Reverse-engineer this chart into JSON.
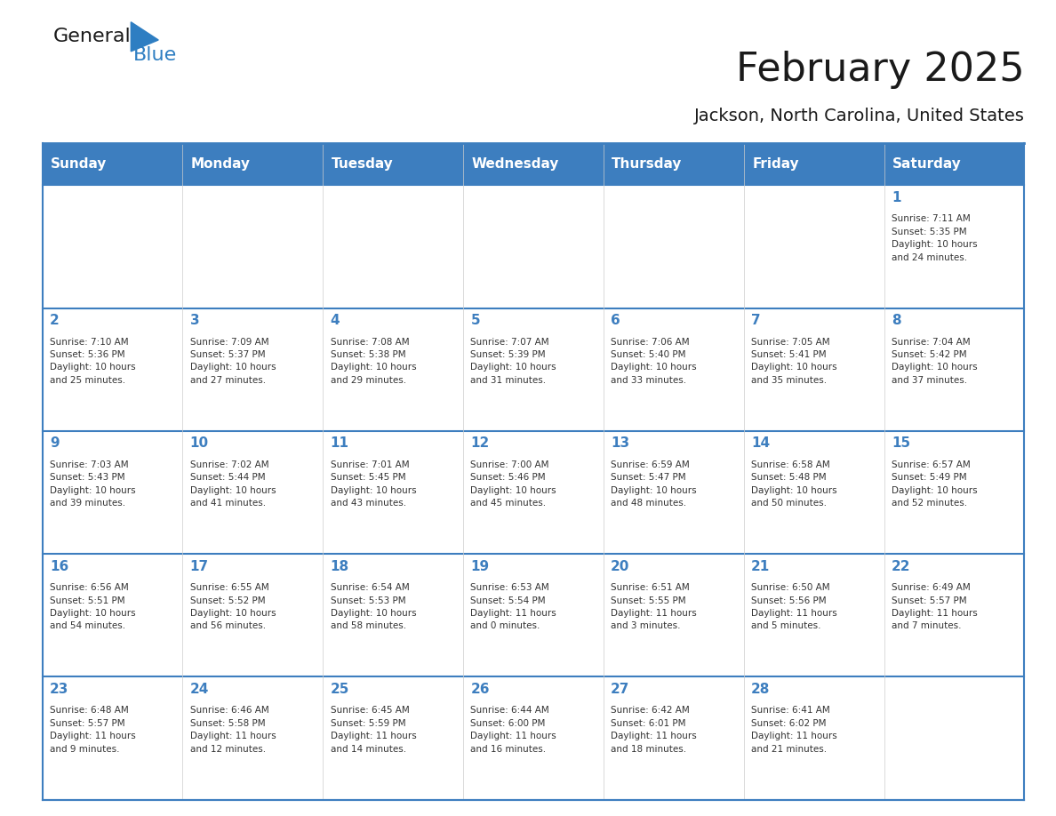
{
  "title": "February 2025",
  "subtitle": "Jackson, North Carolina, United States",
  "header_color": "#3D7EBF",
  "header_text_color": "#FFFFFF",
  "cell_bg_color": "#FFFFFF",
  "border_color": "#3D7EBF",
  "title_color": "#1A1A1A",
  "subtitle_color": "#1A1A1A",
  "days_of_week": [
    "Sunday",
    "Monday",
    "Tuesday",
    "Wednesday",
    "Thursday",
    "Friday",
    "Saturday"
  ],
  "day_number_color": "#3D7EBF",
  "text_color": "#333333",
  "logo_general_color": "#1A1A1A",
  "logo_blue_color": "#2E7EC2",
  "calendar": [
    [
      {
        "day": null,
        "info": null
      },
      {
        "day": null,
        "info": null
      },
      {
        "day": null,
        "info": null
      },
      {
        "day": null,
        "info": null
      },
      {
        "day": null,
        "info": null
      },
      {
        "day": null,
        "info": null
      },
      {
        "day": 1,
        "info": "Sunrise: 7:11 AM\nSunset: 5:35 PM\nDaylight: 10 hours\nand 24 minutes."
      }
    ],
    [
      {
        "day": 2,
        "info": "Sunrise: 7:10 AM\nSunset: 5:36 PM\nDaylight: 10 hours\nand 25 minutes."
      },
      {
        "day": 3,
        "info": "Sunrise: 7:09 AM\nSunset: 5:37 PM\nDaylight: 10 hours\nand 27 minutes."
      },
      {
        "day": 4,
        "info": "Sunrise: 7:08 AM\nSunset: 5:38 PM\nDaylight: 10 hours\nand 29 minutes."
      },
      {
        "day": 5,
        "info": "Sunrise: 7:07 AM\nSunset: 5:39 PM\nDaylight: 10 hours\nand 31 minutes."
      },
      {
        "day": 6,
        "info": "Sunrise: 7:06 AM\nSunset: 5:40 PM\nDaylight: 10 hours\nand 33 minutes."
      },
      {
        "day": 7,
        "info": "Sunrise: 7:05 AM\nSunset: 5:41 PM\nDaylight: 10 hours\nand 35 minutes."
      },
      {
        "day": 8,
        "info": "Sunrise: 7:04 AM\nSunset: 5:42 PM\nDaylight: 10 hours\nand 37 minutes."
      }
    ],
    [
      {
        "day": 9,
        "info": "Sunrise: 7:03 AM\nSunset: 5:43 PM\nDaylight: 10 hours\nand 39 minutes."
      },
      {
        "day": 10,
        "info": "Sunrise: 7:02 AM\nSunset: 5:44 PM\nDaylight: 10 hours\nand 41 minutes."
      },
      {
        "day": 11,
        "info": "Sunrise: 7:01 AM\nSunset: 5:45 PM\nDaylight: 10 hours\nand 43 minutes."
      },
      {
        "day": 12,
        "info": "Sunrise: 7:00 AM\nSunset: 5:46 PM\nDaylight: 10 hours\nand 45 minutes."
      },
      {
        "day": 13,
        "info": "Sunrise: 6:59 AM\nSunset: 5:47 PM\nDaylight: 10 hours\nand 48 minutes."
      },
      {
        "day": 14,
        "info": "Sunrise: 6:58 AM\nSunset: 5:48 PM\nDaylight: 10 hours\nand 50 minutes."
      },
      {
        "day": 15,
        "info": "Sunrise: 6:57 AM\nSunset: 5:49 PM\nDaylight: 10 hours\nand 52 minutes."
      }
    ],
    [
      {
        "day": 16,
        "info": "Sunrise: 6:56 AM\nSunset: 5:51 PM\nDaylight: 10 hours\nand 54 minutes."
      },
      {
        "day": 17,
        "info": "Sunrise: 6:55 AM\nSunset: 5:52 PM\nDaylight: 10 hours\nand 56 minutes."
      },
      {
        "day": 18,
        "info": "Sunrise: 6:54 AM\nSunset: 5:53 PM\nDaylight: 10 hours\nand 58 minutes."
      },
      {
        "day": 19,
        "info": "Sunrise: 6:53 AM\nSunset: 5:54 PM\nDaylight: 11 hours\nand 0 minutes."
      },
      {
        "day": 20,
        "info": "Sunrise: 6:51 AM\nSunset: 5:55 PM\nDaylight: 11 hours\nand 3 minutes."
      },
      {
        "day": 21,
        "info": "Sunrise: 6:50 AM\nSunset: 5:56 PM\nDaylight: 11 hours\nand 5 minutes."
      },
      {
        "day": 22,
        "info": "Sunrise: 6:49 AM\nSunset: 5:57 PM\nDaylight: 11 hours\nand 7 minutes."
      }
    ],
    [
      {
        "day": 23,
        "info": "Sunrise: 6:48 AM\nSunset: 5:57 PM\nDaylight: 11 hours\nand 9 minutes."
      },
      {
        "day": 24,
        "info": "Sunrise: 6:46 AM\nSunset: 5:58 PM\nDaylight: 11 hours\nand 12 minutes."
      },
      {
        "day": 25,
        "info": "Sunrise: 6:45 AM\nSunset: 5:59 PM\nDaylight: 11 hours\nand 14 minutes."
      },
      {
        "day": 26,
        "info": "Sunrise: 6:44 AM\nSunset: 6:00 PM\nDaylight: 11 hours\nand 16 minutes."
      },
      {
        "day": 27,
        "info": "Sunrise: 6:42 AM\nSunset: 6:01 PM\nDaylight: 11 hours\nand 18 minutes."
      },
      {
        "day": 28,
        "info": "Sunrise: 6:41 AM\nSunset: 6:02 PM\nDaylight: 11 hours\nand 21 minutes."
      },
      {
        "day": null,
        "info": null
      }
    ]
  ]
}
